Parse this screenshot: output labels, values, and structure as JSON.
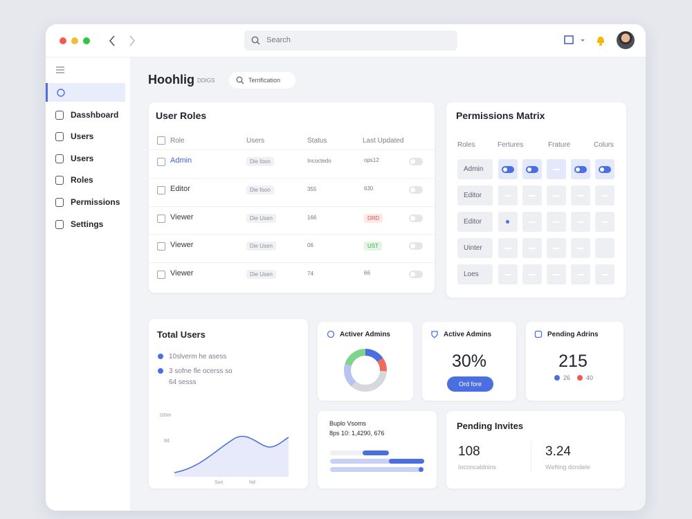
{
  "window": {
    "search": "Search"
  },
  "sidebar": {
    "items": [
      "Dasshboard",
      "Users",
      "Users",
      "Roles",
      "Permissions",
      "Settings"
    ]
  },
  "header": {
    "title": "Hoohlig",
    "dropdown": "DDIGS",
    "filter": "Terrification"
  },
  "user_roles": {
    "title": "User Roles",
    "columns": [
      "Role",
      "Users",
      "Status",
      "Last Updated"
    ],
    "rows": [
      [
        "Admin",
        "Die foon",
        "Incoctedo",
        "ops12"
      ],
      [
        "Editor",
        "Die foon",
        "355",
        "630"
      ],
      [
        "Viewer",
        "Die Usen",
        "166",
        "DRD"
      ],
      [
        "Viewer",
        "Die Usen",
        "06",
        "UST"
      ],
      [
        "Viewer",
        "Die Usen",
        "74",
        "66"
      ]
    ]
  },
  "permissions": {
    "title": "Permissions Matrix",
    "columns": [
      "Roles",
      "Fertures",
      "Frature",
      "Colurs"
    ],
    "rows": [
      "Admin",
      "Editor",
      "Editor",
      "Uinter",
      "Loes"
    ]
  },
  "total_users": {
    "title": "Total Users",
    "items": [
      "10slverm he asess",
      "3 sofne fle ocerss so"
    ],
    "note": "64 sesss",
    "y_labels": [
      "100m",
      "8d"
    ],
    "x_labels": [
      "Sun",
      "Nd"
    ]
  },
  "donut_card": {
    "title": "Activer Admins"
  },
  "active_admins": {
    "title": "Active Admins",
    "value": "30%",
    "button": "Ord fore"
  },
  "pending_admins": {
    "title": "Pending Adrins",
    "value": "215",
    "legend": [
      "26",
      "40"
    ]
  },
  "usage": {
    "title": "Buplo Vsoms",
    "subtitle": "8ps 10: 1,4290, 676"
  },
  "pending_invites": {
    "title": "Pending Invites",
    "stats": [
      {
        "value": "108",
        "label": "Ioconcaldnins"
      },
      {
        "value": "3.24",
        "label": "Wefting dondele"
      }
    ]
  }
}
